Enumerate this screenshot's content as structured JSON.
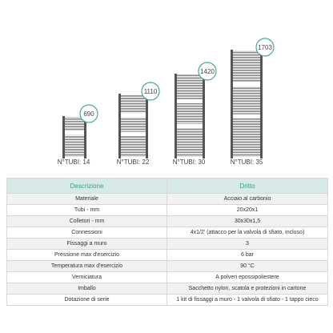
{
  "products": [
    {
      "height": "690",
      "tubes": "N°TUBI: 14"
    },
    {
      "height": "1110",
      "tubes": "N°TUBI: 22"
    },
    {
      "height": "1420",
      "tubes": "N°TUBI: 30"
    },
    {
      "height": "1703",
      "tubes": "N°TUBI: 35"
    }
  ],
  "table": {
    "header": [
      "Descrizione",
      "Dritto"
    ],
    "rows": [
      [
        "Materiale",
        "Acciaio al carbonio"
      ],
      [
        "Tubi - mm",
        "20x20x1"
      ],
      [
        "Colletori - mm",
        "30x30x1,5"
      ],
      [
        "Connessioni",
        "4x1/2' (attacco per la valvola di sfiato, incluso)"
      ],
      [
        "Fissaggi a muro",
        "3"
      ],
      [
        "Pressione max d'esercizio",
        "6 bar"
      ],
      [
        "Temperatura max d'esercizio",
        "90 °C"
      ],
      [
        "Verniciatura",
        "A polveri epossipoliestere"
      ],
      [
        "Imballo",
        "Sacchetto nylon, scatola e protezioni in cartone"
      ],
      [
        "Dotazione di serie",
        "1 kit di fissaggi a muro - 1 valvola di sfiato - 1 tappo cieco"
      ]
    ]
  }
}
